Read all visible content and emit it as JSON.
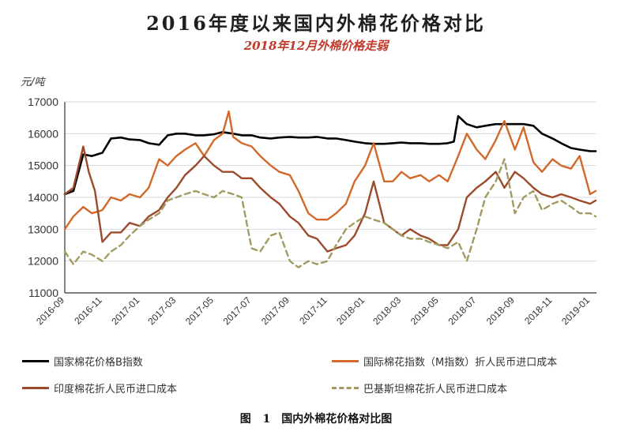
{
  "title": "2016年度以来国内外棉花价格对比",
  "subtitle": "2018年12月外棉价格走弱",
  "caption": "图 1　国内外棉花价格对比图",
  "chart_data": {
    "type": "line",
    "unit_label": "元/吨",
    "ylim": [
      11000,
      17000
    ],
    "yticks": [
      11000,
      12000,
      13000,
      14000,
      15000,
      16000,
      17000
    ],
    "xticks": [
      "2016-09",
      "2016-11",
      "2017-01",
      "2017-03",
      "2017-05",
      "2017-07",
      "2017-09",
      "2017-11",
      "2018-01",
      "2018-03",
      "2018-05",
      "2018-07",
      "2018-09",
      "2018-11",
      "2019-01"
    ],
    "grid": "horizontal",
    "legend_position": "bottom",
    "series": [
      {
        "name": "国家棉花价格B指数",
        "color": "#000000",
        "style": "solid",
        "x": [
          "2016-09-01",
          "2016-09-15",
          "2016-10-01",
          "2016-10-15",
          "2016-11-01",
          "2016-11-15",
          "2016-12-01",
          "2016-12-15",
          "2017-01-01",
          "2017-01-15",
          "2017-02-01",
          "2017-02-15",
          "2017-03-01",
          "2017-03-15",
          "2017-04-01",
          "2017-04-15",
          "2017-05-01",
          "2017-05-15",
          "2017-06-01",
          "2017-06-15",
          "2017-07-01",
          "2017-07-15",
          "2017-08-01",
          "2017-08-15",
          "2017-09-01",
          "2017-09-15",
          "2017-10-01",
          "2017-10-15",
          "2017-11-01",
          "2017-11-15",
          "2017-12-01",
          "2017-12-15",
          "2018-01-01",
          "2018-01-15",
          "2018-02-01",
          "2018-02-15",
          "2018-03-01",
          "2018-03-15",
          "2018-04-01",
          "2018-04-15",
          "2018-05-01",
          "2018-05-15",
          "2018-05-25",
          "2018-06-01",
          "2018-06-15",
          "2018-07-01",
          "2018-07-15",
          "2018-08-01",
          "2018-08-15",
          "2018-09-01",
          "2018-09-15",
          "2018-10-01",
          "2018-10-15",
          "2018-11-01",
          "2018-11-15",
          "2018-12-01",
          "2018-12-15",
          "2019-01-01",
          "2019-01-10"
        ],
        "values": [
          14100,
          14200,
          15350,
          15300,
          15400,
          15850,
          15880,
          15820,
          15800,
          15700,
          15650,
          15950,
          16000,
          16000,
          15950,
          15950,
          15980,
          16050,
          16000,
          15950,
          15950,
          15880,
          15850,
          15880,
          15900,
          15880,
          15880,
          15900,
          15850,
          15850,
          15800,
          15750,
          15700,
          15680,
          15680,
          15700,
          15720,
          15700,
          15700,
          15680,
          15680,
          15700,
          15750,
          16550,
          16300,
          16200,
          16250,
          16300,
          16300,
          16300,
          16300,
          16250,
          16000,
          15850,
          15700,
          15550,
          15500,
          15450,
          15450
        ]
      },
      {
        "name": "国际棉花指数（M指数）折人民币进口成本",
        "color": "#d2692a",
        "style": "solid",
        "x": [
          "2016-09-01",
          "2016-09-15",
          "2016-10-01",
          "2016-10-15",
          "2016-11-01",
          "2016-11-15",
          "2016-12-01",
          "2016-12-15",
          "2017-01-01",
          "2017-01-15",
          "2017-02-01",
          "2017-02-15",
          "2017-03-01",
          "2017-03-15",
          "2017-04-01",
          "2017-04-15",
          "2017-05-01",
          "2017-05-15",
          "2017-05-25",
          "2017-06-01",
          "2017-06-15",
          "2017-07-01",
          "2017-07-15",
          "2017-08-01",
          "2017-08-15",
          "2017-09-01",
          "2017-09-15",
          "2017-10-01",
          "2017-10-15",
          "2017-11-01",
          "2017-11-15",
          "2017-12-01",
          "2017-12-15",
          "2018-01-01",
          "2018-01-15",
          "2018-02-01",
          "2018-02-15",
          "2018-03-01",
          "2018-03-15",
          "2018-04-01",
          "2018-04-15",
          "2018-05-01",
          "2018-05-15",
          "2018-06-01",
          "2018-06-15",
          "2018-07-01",
          "2018-07-15",
          "2018-08-01",
          "2018-08-15",
          "2018-09-01",
          "2018-09-15",
          "2018-10-01",
          "2018-10-15",
          "2018-11-01",
          "2018-11-15",
          "2018-12-01",
          "2018-12-15",
          "2019-01-01",
          "2019-01-10"
        ],
        "values": [
          13000,
          13400,
          13700,
          13500,
          13600,
          14000,
          13900,
          14100,
          14000,
          14300,
          15200,
          15000,
          15300,
          15500,
          15700,
          15300,
          15800,
          16000,
          16700,
          15900,
          15700,
          15600,
          15300,
          15000,
          14800,
          14700,
          14200,
          13500,
          13300,
          13300,
          13500,
          13800,
          14500,
          15000,
          15700,
          14500,
          14500,
          14800,
          14600,
          14700,
          14500,
          14700,
          14500,
          15300,
          16000,
          15500,
          15200,
          15800,
          16400,
          15500,
          16200,
          15100,
          14800,
          15200,
          15000,
          14900,
          15300,
          14100,
          14200
        ]
      },
      {
        "name": "印度棉花折人民币进口成本",
        "color": "#9c4a2b",
        "style": "solid",
        "x": [
          "2016-09-01",
          "2016-09-15",
          "2016-10-01",
          "2016-10-10",
          "2016-10-20",
          "2016-11-01",
          "2016-11-15",
          "2016-12-01",
          "2016-12-15",
          "2017-01-01",
          "2017-01-15",
          "2017-02-01",
          "2017-02-15",
          "2017-03-01",
          "2017-03-15",
          "2017-04-01",
          "2017-04-15",
          "2017-05-01",
          "2017-05-15",
          "2017-06-01",
          "2017-06-15",
          "2017-07-01",
          "2017-07-15",
          "2017-08-01",
          "2017-08-15",
          "2017-09-01",
          "2017-09-15",
          "2017-10-01",
          "2017-10-15",
          "2017-11-01",
          "2017-11-15",
          "2017-12-01",
          "2017-12-15",
          "2018-01-01",
          "2018-01-15",
          "2018-02-01",
          "2018-02-15",
          "2018-03-01",
          "2018-03-15",
          "2018-04-01",
          "2018-04-15",
          "2018-05-01",
          "2018-05-15",
          "2018-06-01",
          "2018-06-15",
          "2018-07-01",
          "2018-07-15",
          "2018-08-01",
          "2018-08-15",
          "2018-09-01",
          "2018-09-15",
          "2018-10-01",
          "2018-10-15",
          "2018-11-01",
          "2018-11-15",
          "2018-12-01",
          "2018-12-15",
          "2019-01-01",
          "2019-01-10"
        ],
        "values": [
          14100,
          14300,
          15600,
          14800,
          14200,
          12600,
          12900,
          12900,
          13200,
          13100,
          13400,
          13600,
          14000,
          14300,
          14700,
          15000,
          15300,
          15000,
          14800,
          14800,
          14600,
          14600,
          14300,
          14000,
          13800,
          13400,
          13200,
          12800,
          12700,
          12300,
          12400,
          12500,
          12800,
          13500,
          14500,
          13200,
          13000,
          12800,
          13000,
          12800,
          12700,
          12500,
          12500,
          13000,
          14000,
          14300,
          14500,
          14800,
          14300,
          14800,
          14600,
          14300,
          14100,
          14000,
          14100,
          14000,
          13900,
          13800,
          13900
        ]
      },
      {
        "name": "巴基斯坦棉花折人民币进口成本",
        "color": "#a39a62",
        "style": "dashed",
        "x": [
          "2016-09-01",
          "2016-09-15",
          "2016-10-01",
          "2016-10-15",
          "2016-11-01",
          "2016-11-15",
          "2016-12-01",
          "2016-12-15",
          "2017-01-01",
          "2017-01-15",
          "2017-02-01",
          "2017-02-15",
          "2017-03-01",
          "2017-03-15",
          "2017-04-01",
          "2017-04-15",
          "2017-05-01",
          "2017-05-15",
          "2017-06-01",
          "2017-06-15",
          "2017-07-01",
          "2017-07-15",
          "2017-08-01",
          "2017-08-15",
          "2017-09-01",
          "2017-09-15",
          "2017-10-01",
          "2017-10-15",
          "2017-11-01",
          "2017-11-15",
          "2017-12-01",
          "2017-12-15",
          "2018-01-01",
          "2018-01-15",
          "2018-02-01",
          "2018-02-15",
          "2018-03-01",
          "2018-03-15",
          "2018-04-01",
          "2018-04-15",
          "2018-05-01",
          "2018-05-15",
          "2018-06-01",
          "2018-06-15",
          "2018-07-01",
          "2018-07-15",
          "2018-08-01",
          "2018-08-15",
          "2018-09-01",
          "2018-09-15",
          "2018-10-01",
          "2018-10-15",
          "2018-11-01",
          "2018-11-15",
          "2018-12-01",
          "2018-12-15",
          "2019-01-01",
          "2019-01-10"
        ],
        "values": [
          12300,
          11900,
          12300,
          12200,
          12000,
          12300,
          12500,
          12800,
          13100,
          13300,
          13500,
          13900,
          14000,
          14100,
          14200,
          14100,
          14000,
          14200,
          14100,
          14000,
          12400,
          12300,
          12800,
          12900,
          12000,
          11800,
          12000,
          11900,
          12000,
          12500,
          13000,
          13200,
          13400,
          13300,
          13200,
          13000,
          12800,
          12700,
          12700,
          12600,
          12500,
          12400,
          12600,
          12000,
          13000,
          14000,
          14500,
          15200,
          13500,
          14000,
          14200,
          13600,
          13800,
          13900,
          13700,
          13500,
          13500,
          13400
        ]
      }
    ]
  }
}
